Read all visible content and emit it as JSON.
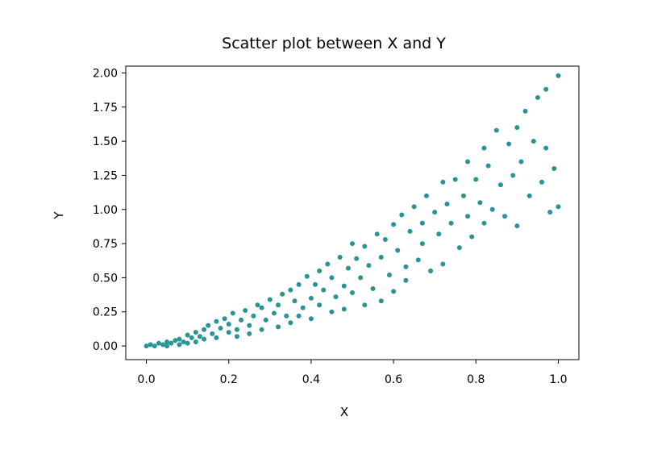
{
  "chart_data": {
    "type": "scatter",
    "title": "Scatter plot between X and Y",
    "xlabel": "X",
    "ylabel": "Y",
    "xlim": [
      -0.05,
      1.05
    ],
    "ylim": [
      -0.1,
      2.05
    ],
    "xticks": [
      "0.0",
      "0.2",
      "0.4",
      "0.6",
      "0.8",
      "1.0"
    ],
    "yticks": [
      "0.00",
      "0.25",
      "0.50",
      "0.75",
      "1.00",
      "1.25",
      "1.50",
      "1.75",
      "2.00"
    ],
    "grid": false,
    "marker_color": "#2a9494",
    "series": [
      {
        "points": [
          [
            0.0,
            0.0
          ],
          [
            0.01,
            0.01
          ],
          [
            0.02,
            0.0
          ],
          [
            0.03,
            0.02
          ],
          [
            0.04,
            0.01
          ],
          [
            0.05,
            0.0
          ],
          [
            0.05,
            0.03
          ],
          [
            0.06,
            0.02
          ],
          [
            0.07,
            0.04
          ],
          [
            0.08,
            0.01
          ],
          [
            0.08,
            0.05
          ],
          [
            0.09,
            0.03
          ],
          [
            0.1,
            0.08
          ],
          [
            0.1,
            0.02
          ],
          [
            0.11,
            0.06
          ],
          [
            0.12,
            0.1
          ],
          [
            0.12,
            0.03
          ],
          [
            0.13,
            0.07
          ],
          [
            0.14,
            0.12
          ],
          [
            0.14,
            0.05
          ],
          [
            0.15,
            0.15
          ],
          [
            0.16,
            0.09
          ],
          [
            0.17,
            0.18
          ],
          [
            0.17,
            0.06
          ],
          [
            0.18,
            0.13
          ],
          [
            0.19,
            0.2
          ],
          [
            0.2,
            0.1
          ],
          [
            0.2,
            0.16
          ],
          [
            0.21,
            0.24
          ],
          [
            0.22,
            0.12
          ],
          [
            0.22,
            0.07
          ],
          [
            0.23,
            0.19
          ],
          [
            0.24,
            0.26
          ],
          [
            0.25,
            0.15
          ],
          [
            0.25,
            0.09
          ],
          [
            0.26,
            0.22
          ],
          [
            0.27,
            0.3
          ],
          [
            0.28,
            0.12
          ],
          [
            0.28,
            0.28
          ],
          [
            0.29,
            0.19
          ],
          [
            0.3,
            0.34
          ],
          [
            0.31,
            0.24
          ],
          [
            0.32,
            0.14
          ],
          [
            0.32,
            0.3
          ],
          [
            0.33,
            0.38
          ],
          [
            0.34,
            0.22
          ],
          [
            0.35,
            0.41
          ],
          [
            0.35,
            0.17
          ],
          [
            0.36,
            0.33
          ],
          [
            0.37,
            0.45
          ],
          [
            0.37,
            0.22
          ],
          [
            0.38,
            0.28
          ],
          [
            0.39,
            0.51
          ],
          [
            0.4,
            0.35
          ],
          [
            0.4,
            0.2
          ],
          [
            0.41,
            0.45
          ],
          [
            0.42,
            0.55
          ],
          [
            0.42,
            0.3
          ],
          [
            0.43,
            0.41
          ],
          [
            0.44,
            0.6
          ],
          [
            0.45,
            0.25
          ],
          [
            0.45,
            0.5
          ],
          [
            0.46,
            0.36
          ],
          [
            0.47,
            0.65
          ],
          [
            0.48,
            0.44
          ],
          [
            0.48,
            0.27
          ],
          [
            0.49,
            0.57
          ],
          [
            0.5,
            0.75
          ],
          [
            0.5,
            0.39
          ],
          [
            0.51,
            0.64
          ],
          [
            0.52,
            0.5
          ],
          [
            0.53,
            0.73
          ],
          [
            0.53,
            0.3
          ],
          [
            0.54,
            0.59
          ],
          [
            0.55,
            0.42
          ],
          [
            0.56,
            0.82
          ],
          [
            0.57,
            0.65
          ],
          [
            0.57,
            0.33
          ],
          [
            0.58,
            0.78
          ],
          [
            0.59,
            0.52
          ],
          [
            0.6,
            0.89
          ],
          [
            0.6,
            0.4
          ],
          [
            0.61,
            0.7
          ],
          [
            0.62,
            0.96
          ],
          [
            0.63,
            0.58
          ],
          [
            0.63,
            0.48
          ],
          [
            0.64,
            0.84
          ],
          [
            0.65,
            1.02
          ],
          [
            0.66,
            0.63
          ],
          [
            0.67,
            0.9
          ],
          [
            0.67,
            0.75
          ],
          [
            0.68,
            1.1
          ],
          [
            0.69,
            0.55
          ],
          [
            0.7,
            0.98
          ],
          [
            0.71,
            0.82
          ],
          [
            0.72,
            1.2
          ],
          [
            0.72,
            0.6
          ],
          [
            0.73,
            1.04
          ],
          [
            0.74,
            0.9
          ],
          [
            0.75,
            1.22
          ],
          [
            0.76,
            0.72
          ],
          [
            0.77,
            1.1
          ],
          [
            0.78,
            0.95
          ],
          [
            0.78,
            1.35
          ],
          [
            0.79,
            0.8
          ],
          [
            0.8,
            1.22
          ],
          [
            0.81,
            1.05
          ],
          [
            0.82,
            1.45
          ],
          [
            0.82,
            0.9
          ],
          [
            0.83,
            1.32
          ],
          [
            0.84,
            1.0
          ],
          [
            0.85,
            1.58
          ],
          [
            0.86,
            1.18
          ],
          [
            0.87,
            0.95
          ],
          [
            0.88,
            1.48
          ],
          [
            0.89,
            1.25
          ],
          [
            0.9,
            1.6
          ],
          [
            0.9,
            0.88
          ],
          [
            0.91,
            1.35
          ],
          [
            0.92,
            1.72
          ],
          [
            0.93,
            1.1
          ],
          [
            0.94,
            1.5
          ],
          [
            0.95,
            1.82
          ],
          [
            0.96,
            1.2
          ],
          [
            0.97,
            1.45
          ],
          [
            0.97,
            1.88
          ],
          [
            0.98,
            0.98
          ],
          [
            0.99,
            1.3
          ],
          [
            1.0,
            1.98
          ],
          [
            1.0,
            1.02
          ]
        ]
      }
    ]
  }
}
